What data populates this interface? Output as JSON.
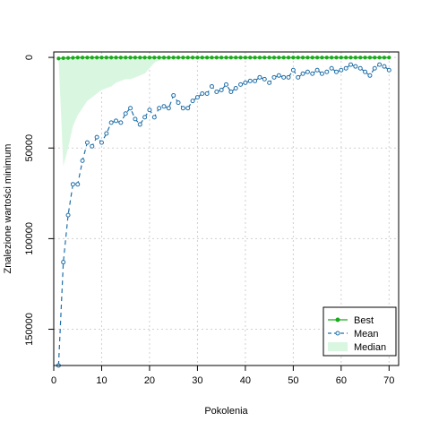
{
  "chart_data": {
    "type": "line",
    "xlabel": "Pokolenia",
    "ylabel": "Znalezione wartości minimum",
    "xlim": [
      0,
      72
    ],
    "ylim": [
      170000,
      -3000
    ],
    "y_axis_reversed": true,
    "grid": true,
    "legend_position": "bottom-right",
    "x_ticks": [
      0,
      10,
      20,
      30,
      40,
      50,
      60,
      70
    ],
    "y_ticks": [
      0,
      50000,
      100000,
      150000
    ],
    "x": [
      1,
      2,
      3,
      4,
      5,
      6,
      7,
      8,
      9,
      10,
      11,
      12,
      13,
      14,
      15,
      16,
      17,
      18,
      19,
      20,
      21,
      22,
      23,
      24,
      25,
      26,
      27,
      28,
      29,
      30,
      31,
      32,
      33,
      34,
      35,
      36,
      37,
      38,
      39,
      40,
      41,
      42,
      43,
      44,
      45,
      46,
      47,
      48,
      49,
      50,
      51,
      52,
      53,
      54,
      55,
      56,
      57,
      58,
      59,
      60,
      61,
      62,
      63,
      64,
      65,
      66,
      67,
      68,
      69,
      70
    ],
    "series": [
      {
        "name": "Best",
        "color": "#1aab1a",
        "style": "solid",
        "marker": "filled-circle",
        "values": [
          600,
          400,
          300,
          200,
          100,
          100,
          100,
          100,
          100,
          100,
          100,
          100,
          100,
          100,
          100,
          100,
          100,
          100,
          100,
          100,
          100,
          100,
          100,
          100,
          100,
          100,
          100,
          100,
          100,
          100,
          100,
          100,
          100,
          100,
          100,
          100,
          100,
          100,
          100,
          100,
          100,
          100,
          100,
          100,
          100,
          100,
          100,
          100,
          100,
          100,
          100,
          100,
          100,
          100,
          100,
          100,
          100,
          100,
          100,
          100,
          100,
          100,
          100,
          100,
          100,
          100,
          100,
          100,
          100,
          100
        ]
      },
      {
        "name": "Mean",
        "color": "#1f6fa8",
        "style": "dashed",
        "marker": "open-circle",
        "values": [
          170000,
          113000,
          87000,
          70000,
          70000,
          57000,
          47000,
          49000,
          44000,
          47000,
          42000,
          36000,
          35000,
          36000,
          31000,
          28000,
          34000,
          37000,
          33000,
          29000,
          33000,
          28000,
          27000,
          28000,
          21000,
          25000,
          28000,
          28000,
          24000,
          22000,
          20000,
          20000,
          16000,
          19000,
          18000,
          15000,
          19000,
          17000,
          15000,
          14000,
          13000,
          13000,
          11000,
          12000,
          14000,
          11000,
          10000,
          11000,
          11000,
          7000,
          11000,
          9000,
          8000,
          9000,
          7000,
          9000,
          8000,
          6000,
          8000,
          7000,
          6000,
          4000,
          5000,
          6000,
          8000,
          10000,
          6000,
          4000,
          5000,
          7000
        ]
      },
      {
        "name": "Median",
        "color": "#d9f7e0",
        "style": "band",
        "upper": [
          0,
          60000,
          50000,
          38000,
          32000,
          28000,
          24000,
          22000,
          20000,
          18000,
          17000,
          16000,
          14000,
          13000,
          12000,
          12000,
          11000,
          10000,
          9000,
          6000,
          3000,
          1500,
          1500,
          1500,
          1000,
          1000,
          1000,
          1000,
          1000,
          1000,
          1000,
          1000,
          1000,
          1000,
          1000,
          1000,
          1000,
          1000,
          1000,
          1000,
          1000,
          1000,
          1000,
          1000,
          1000,
          1000,
          1000,
          1000,
          1000,
          1000,
          1000,
          1000,
          1000,
          1000,
          1000,
          1000,
          1000,
          1000,
          1000,
          1000,
          1000,
          1000,
          1000,
          1000,
          1000,
          1000,
          1000,
          1000,
          1000,
          1000
        ]
      }
    ]
  }
}
